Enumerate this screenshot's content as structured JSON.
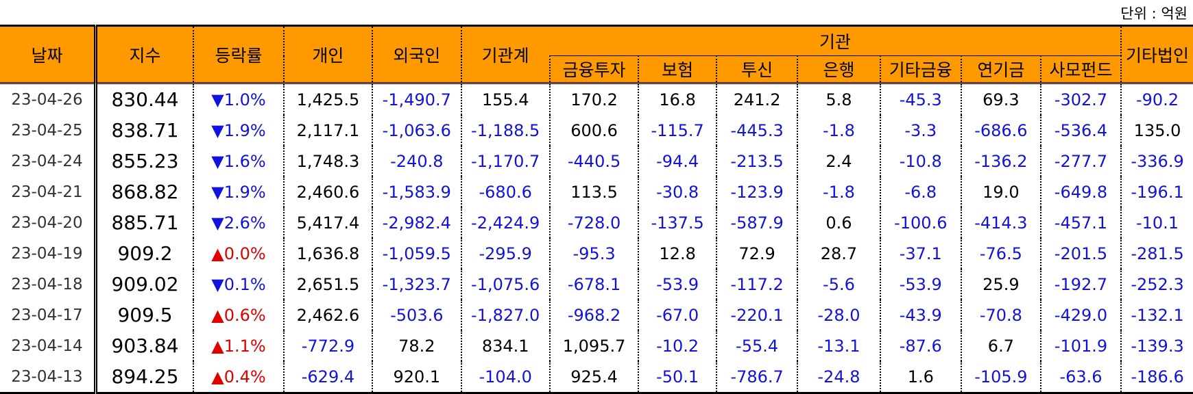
{
  "unit_label": "단위 : 억원",
  "headers": {
    "date": "날짜",
    "index": "지수",
    "change": "등락률",
    "individual": "개인",
    "foreign": "외국인",
    "inst_total": "기관계",
    "institution": "기관",
    "sub": [
      "금융투자",
      "보험",
      "투신",
      "은행",
      "기타금융",
      "연기금",
      "사모펀드"
    ],
    "other_corp": "기타법인"
  },
  "rows": [
    {
      "date": "23-04-26",
      "index": "830.44",
      "arrow": "▼",
      "rate": "1.0%",
      "dir": "down",
      "vals": [
        "1,425.5",
        "-1,490.7",
        "155.4",
        "170.2",
        "16.8",
        "241.2",
        "5.8",
        "-45.3",
        "69.3",
        "-302.7",
        "-90.2"
      ]
    },
    {
      "date": "23-04-25",
      "index": "838.71",
      "arrow": "▼",
      "rate": "1.9%",
      "dir": "down",
      "vals": [
        "2,117.1",
        "-1,063.6",
        "-1,188.5",
        "600.6",
        "-115.7",
        "-445.3",
        "-1.8",
        "-3.3",
        "-686.6",
        "-536.4",
        "135.0"
      ]
    },
    {
      "date": "23-04-24",
      "index": "855.23",
      "arrow": "▼",
      "rate": "1.6%",
      "dir": "down",
      "vals": [
        "1,748.3",
        "-240.8",
        "-1,170.7",
        "-440.5",
        "-94.4",
        "-213.5",
        "2.4",
        "-10.8",
        "-136.2",
        "-277.7",
        "-336.9"
      ]
    },
    {
      "date": "23-04-21",
      "index": "868.82",
      "arrow": "▼",
      "rate": "1.9%",
      "dir": "down",
      "vals": [
        "2,460.6",
        "-1,583.9",
        "-680.6",
        "113.5",
        "-30.8",
        "-123.9",
        "-1.8",
        "-6.8",
        "19.0",
        "-649.8",
        "-196.1"
      ]
    },
    {
      "date": "23-04-20",
      "index": "885.71",
      "arrow": "▼",
      "rate": "2.6%",
      "dir": "down",
      "vals": [
        "5,417.4",
        "-2,982.4",
        "-2,424.9",
        "-728.0",
        "-137.5",
        "-587.9",
        "0.6",
        "-100.6",
        "-414.3",
        "-457.1",
        "-10.1"
      ]
    },
    {
      "date": "23-04-19",
      "index": "909.2",
      "arrow": "▲",
      "rate": "0.0%",
      "dir": "up",
      "vals": [
        "1,636.8",
        "-1,059.5",
        "-295.9",
        "-95.3",
        "12.8",
        "72.9",
        "28.7",
        "-37.1",
        "-76.5",
        "-201.5",
        "-281.5"
      ]
    },
    {
      "date": "23-04-18",
      "index": "909.02",
      "arrow": "▼",
      "rate": "0.1%",
      "dir": "down",
      "vals": [
        "2,651.5",
        "-1,323.7",
        "-1,075.6",
        "-678.1",
        "-53.9",
        "-117.2",
        "-5.6",
        "-53.9",
        "25.9",
        "-192.7",
        "-252.3"
      ]
    },
    {
      "date": "23-04-17",
      "index": "909.5",
      "arrow": "▲",
      "rate": "0.6%",
      "dir": "up",
      "vals": [
        "2,462.6",
        "-503.6",
        "-1,827.0",
        "-968.2",
        "-67.0",
        "-220.1",
        "-28.0",
        "-43.9",
        "-70.8",
        "-429.0",
        "-132.1"
      ]
    },
    {
      "date": "23-04-14",
      "index": "903.84",
      "arrow": "▲",
      "rate": "1.1%",
      "dir": "up",
      "vals": [
        "-772.9",
        "78.2",
        "834.1",
        "1,095.7",
        "-10.2",
        "-55.4",
        "-13.1",
        "-87.6",
        "6.7",
        "-101.9",
        "-139.3"
      ]
    },
    {
      "date": "23-04-13",
      "index": "894.25",
      "arrow": "▲",
      "rate": "0.4%",
      "dir": "up",
      "vals": [
        "-629.4",
        "920.1",
        "-104.0",
        "925.4",
        "-50.1",
        "-786.7",
        "-24.8",
        "1.6",
        "-105.9",
        "-63.6",
        "-186.6"
      ]
    }
  ],
  "colors": {
    "header_bg": "#FF9900",
    "negative": "#1212e0",
    "down": "#1212e0",
    "up": "#e00000"
  }
}
